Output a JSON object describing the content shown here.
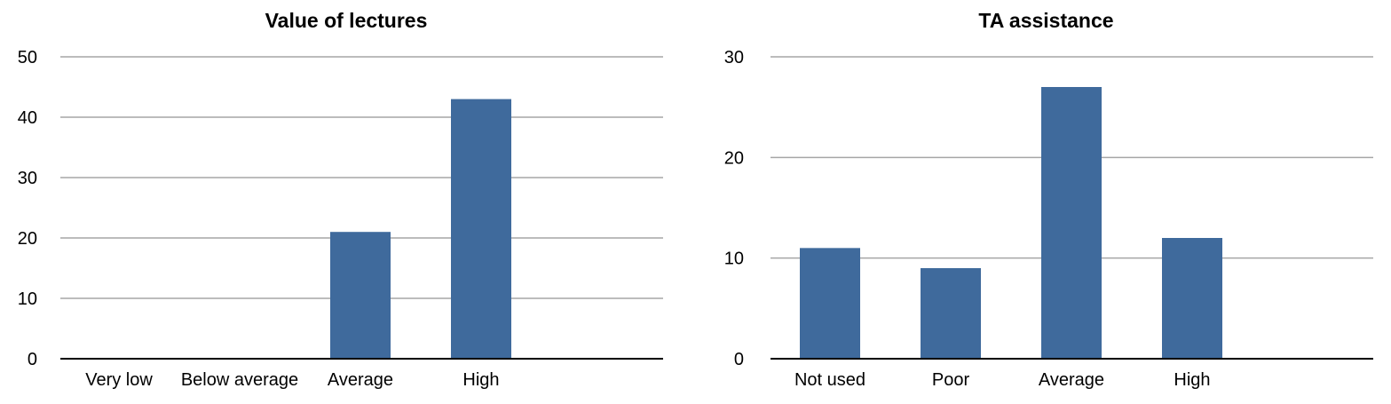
{
  "chart_data": [
    {
      "type": "bar",
      "title": "Value of lectures",
      "categories": [
        "Very low",
        "Below average",
        "Average",
        "High"
      ],
      "values": [
        0,
        0,
        21,
        43
      ],
      "ylim": [
        0,
        50
      ],
      "yticks": [
        0,
        10,
        20,
        30,
        40,
        50
      ],
      "xlabel": "",
      "ylabel": "",
      "grid": true,
      "legend": "none",
      "bar_color": "#3f6a9c"
    },
    {
      "type": "bar",
      "title": "TA assistance",
      "categories": [
        "Not used",
        "Poor",
        "Average",
        "High"
      ],
      "values": [
        11,
        9,
        27,
        12
      ],
      "ylim": [
        0,
        30
      ],
      "yticks": [
        0,
        10,
        20,
        30
      ],
      "xlabel": "",
      "ylabel": "",
      "grid": true,
      "legend": "none",
      "bar_color": "#3f6a9c"
    }
  ]
}
